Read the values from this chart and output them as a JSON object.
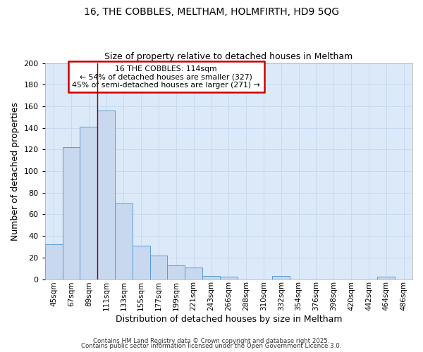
{
  "title1": "16, THE COBBLES, MELTHAM, HOLMFIRTH, HD9 5QG",
  "title2": "Size of property relative to detached houses in Meltham",
  "xlabel": "Distribution of detached houses by size in Meltham",
  "ylabel": "Number of detached properties",
  "categories": [
    "45sqm",
    "67sqm",
    "89sqm",
    "111sqm",
    "133sqm",
    "155sqm",
    "177sqm",
    "199sqm",
    "221sqm",
    "243sqm",
    "266sqm",
    "288sqm",
    "310sqm",
    "332sqm",
    "354sqm",
    "376sqm",
    "398sqm",
    "420sqm",
    "442sqm",
    "464sqm",
    "486sqm"
  ],
  "values": [
    32,
    122,
    141,
    156,
    70,
    31,
    22,
    13,
    11,
    3,
    2,
    0,
    0,
    3,
    0,
    0,
    0,
    0,
    0,
    2,
    0
  ],
  "bar_color": "#c8d8ee",
  "bar_edge_color": "#5b9bd5",
  "grid_color": "#c5d8ee",
  "bg_color": "#dce9f8",
  "vline_x": 2.5,
  "vline_color": "#8b0000",
  "annotation_text": "16 THE COBBLES: 114sqm\n← 54% of detached houses are smaller (327)\n45% of semi-detached houses are larger (271) →",
  "annotation_box_color": "#ffffff",
  "annotation_box_edge_color": "#cc0000",
  "footer1": "Contains HM Land Registry data © Crown copyright and database right 2025.",
  "footer2": "Contains public sector information licensed under the Open Government Licence 3.0.",
  "ylim": [
    0,
    200
  ],
  "yticks": [
    0,
    20,
    40,
    60,
    80,
    100,
    120,
    140,
    160,
    180,
    200
  ]
}
